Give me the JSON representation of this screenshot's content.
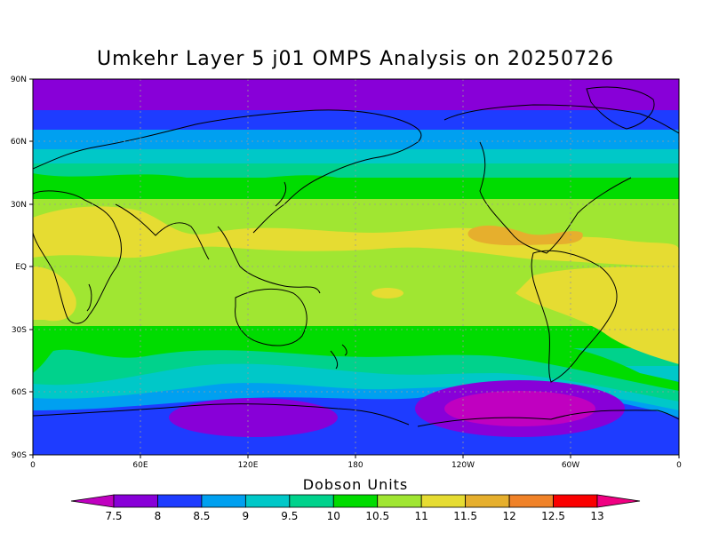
{
  "title": "Umkehr Layer 5 j01 OMPS Analysis on 20250726",
  "colorbar": {
    "label": "Dobson Units",
    "ticks": [
      "7.5",
      "8",
      "8.5",
      "9",
      "9.5",
      "10",
      "10.5",
      "11",
      "11.5",
      "12",
      "12.5",
      "13"
    ],
    "colors": [
      "#c000c0",
      "#8800d8",
      "#1e3cff",
      "#00a0f0",
      "#00c8c8",
      "#00d28c",
      "#00dc00",
      "#a0e632",
      "#e6dc32",
      "#e6af2d",
      "#f08228",
      "#fa0000",
      "#f00082"
    ]
  },
  "axes": {
    "lat_labels": [
      "90N",
      "60N",
      "30N",
      "EQ",
      "30S",
      "60S",
      "90S"
    ],
    "lon_labels": [
      "0",
      "60E",
      "120E",
      "180",
      "120W",
      "60W",
      "0"
    ]
  },
  "chart_data": {
    "type": "heatmap",
    "title": "Umkehr Layer 5 j01 OMPS Analysis on 20250726",
    "units": "Dobson Units",
    "xlim": [
      0,
      360
    ],
    "ylim": [
      -90,
      90
    ],
    "grid": true,
    "lat_band_values": [
      {
        "lat": 85,
        "value": 7.5
      },
      {
        "lat": 75,
        "value": 8
      },
      {
        "lat": 65,
        "value": 8.5
      },
      {
        "lat": 58,
        "value": 9
      },
      {
        "lat": 52,
        "value": 9.5
      },
      {
        "lat": 45,
        "value": 10
      },
      {
        "lat": 38,
        "value": 10.5
      },
      {
        "lat": 20,
        "value": 11.5
      },
      {
        "lat": 0,
        "value": 11
      },
      {
        "lat": -20,
        "value": 11
      },
      {
        "lat": -35,
        "value": 10.5
      },
      {
        "lat": -45,
        "value": 10
      },
      {
        "lat": -52,
        "value": 9.5
      },
      {
        "lat": -58,
        "value": 9
      },
      {
        "lat": -65,
        "value": 8.5
      },
      {
        "lat": -75,
        "value": 8
      },
      {
        "lat": -85,
        "value": 8
      }
    ],
    "features": [
      {
        "name": "max near Central America",
        "lat": 17,
        "lon": 255,
        "value": 12
      },
      {
        "name": "min over Antarctica (E)",
        "lat": -73,
        "lon": 115,
        "value": 7.5
      },
      {
        "name": "min over Antarctica (W)",
        "lat": -67,
        "lon": 270,
        "value": 7.5
      }
    ]
  }
}
